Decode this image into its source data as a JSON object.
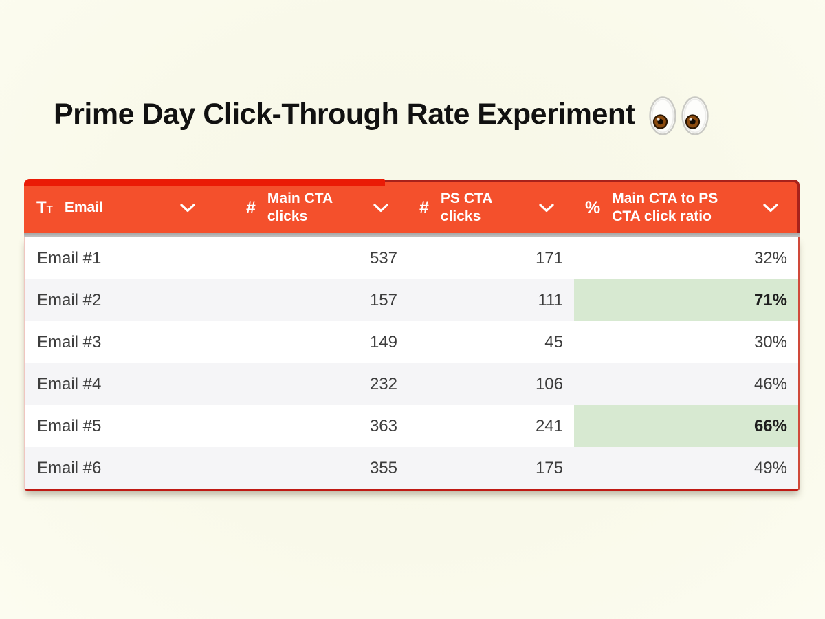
{
  "title": {
    "text": "Prime Day Click-Through Rate Experiment"
  },
  "icons": {
    "text-type-icon": [
      "T",
      "T"
    ],
    "number-icon": "#",
    "percent-icon": "%"
  },
  "table": {
    "columns": [
      {
        "id": "email",
        "icon": "text-type-icon",
        "label": "Email"
      },
      {
        "id": "main_cta",
        "icon": "number-icon",
        "label": "Main CTA clicks"
      },
      {
        "id": "ps_cta",
        "icon": "number-icon",
        "label": "PS CTA clicks"
      },
      {
        "id": "ratio",
        "icon": "percent-icon",
        "label": "Main CTA to PS CTA click ratio"
      }
    ],
    "rows": [
      {
        "email": "Email #1",
        "main_cta": "537",
        "ps_cta": "171",
        "ratio": "32%",
        "ratio_highlight": false
      },
      {
        "email": "Email #2",
        "main_cta": "157",
        "ps_cta": "111",
        "ratio": "71%",
        "ratio_highlight": true
      },
      {
        "email": "Email #3",
        "main_cta": "149",
        "ps_cta": "45",
        "ratio": "30%",
        "ratio_highlight": false
      },
      {
        "email": "Email #4",
        "main_cta": "232",
        "ps_cta": "106",
        "ratio": "46%",
        "ratio_highlight": false
      },
      {
        "email": "Email #5",
        "main_cta": "363",
        "ps_cta": "241",
        "ratio": "66%",
        "ratio_highlight": true
      },
      {
        "email": "Email #6",
        "main_cta": "355",
        "ps_cta": "175",
        "ratio": "49%",
        "ratio_highlight": false
      }
    ]
  },
  "colors": {
    "page_bg": "#f9f9ea",
    "header_bg": "#f4502c",
    "header_border": "#a8221b",
    "accent_strip": "#ea1b06",
    "row_alt_bg": "#f5f5f7",
    "highlight_green": "#d7e9d1",
    "bottom_border": "#bf1a14",
    "body_text": "#3d3d3d",
    "header_text": "#ffffff"
  }
}
